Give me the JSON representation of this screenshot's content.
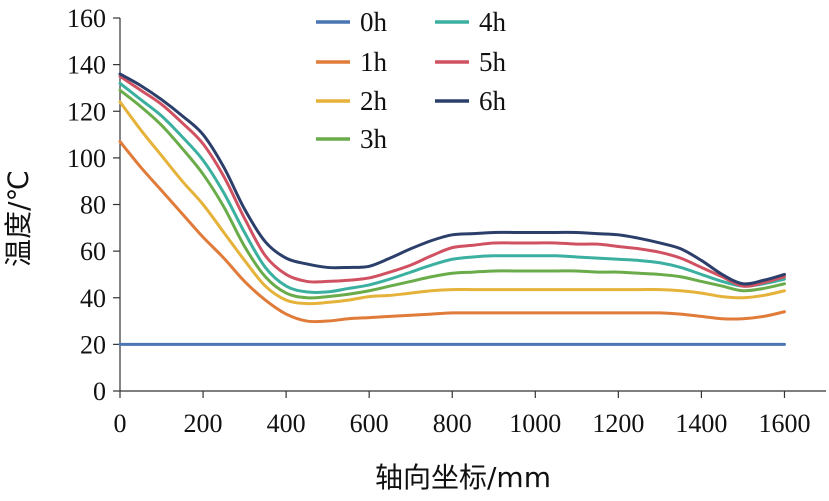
{
  "chart_data": {
    "type": "line",
    "title": "",
    "xlabel": "轴向坐标/mm",
    "ylabel": "温度/℃",
    "xlim": [
      0,
      1700
    ],
    "ylim": [
      0,
      160
    ],
    "x_ticks": [
      "0",
      "200",
      "400",
      "600",
      "800",
      "1000",
      "1200",
      "1400",
      "1600"
    ],
    "y_ticks": [
      "0",
      "20",
      "40",
      "60",
      "80",
      "100",
      "120",
      "140",
      "160"
    ],
    "grid": false,
    "legend_position": "top-center",
    "x": [
      0,
      50,
      100,
      150,
      200,
      250,
      300,
      350,
      400,
      450,
      500,
      550,
      600,
      650,
      700,
      750,
      800,
      850,
      900,
      950,
      1000,
      1050,
      1100,
      1150,
      1200,
      1250,
      1300,
      1350,
      1400,
      1450,
      1500,
      1550,
      1600
    ],
    "series": [
      {
        "name": "0h",
        "color": "#4a77b4",
        "values": [
          20,
          20,
          20,
          20,
          20,
          20,
          20,
          20,
          20,
          20,
          20,
          20,
          20,
          20,
          20,
          20,
          20,
          20,
          20,
          20,
          20,
          20,
          20,
          20,
          20,
          20,
          20,
          20,
          20,
          20,
          20,
          20,
          20
        ]
      },
      {
        "name": "1h",
        "color": "#e07b39",
        "values": [
          107,
          96,
          86,
          76,
          66,
          57,
          47,
          39,
          33,
          30,
          30,
          31,
          31.5,
          32,
          32.5,
          33,
          33.5,
          33.5,
          33.5,
          33.5,
          33.5,
          33.5,
          33.5,
          33.5,
          33.5,
          33.5,
          33.5,
          33,
          32,
          31,
          31,
          32,
          34
        ]
      },
      {
        "name": "2h",
        "color": "#e5b23a",
        "values": [
          124,
          112,
          101,
          90,
          80,
          68,
          56,
          45,
          39,
          37.5,
          38,
          39,
          40.5,
          41,
          42,
          43,
          43.5,
          43.5,
          43.5,
          43.5,
          43.5,
          43.5,
          43.5,
          43.5,
          43.5,
          43.5,
          43.5,
          43,
          42,
          40.5,
          40,
          41,
          43
        ]
      },
      {
        "name": "3h",
        "color": "#6aab4a",
        "values": [
          129,
          122,
          114,
          104,
          93,
          79,
          62,
          49,
          42,
          40,
          40.5,
          41.5,
          43,
          45,
          47,
          49,
          50.5,
          51,
          51.5,
          51.5,
          51.5,
          51.5,
          51.5,
          51,
          51,
          50.5,
          50,
          49,
          47,
          45,
          43,
          44,
          46
        ]
      },
      {
        "name": "4h",
        "color": "#3bb0a0",
        "values": [
          132,
          125,
          118,
          109,
          99,
          85,
          68,
          53,
          45,
          42.5,
          42.5,
          44,
          45.5,
          48,
          51,
          54,
          56.5,
          57.5,
          58,
          58,
          58,
          58,
          57.5,
          57,
          56.5,
          56,
          55,
          53,
          50,
          47,
          45,
          46,
          48
        ]
      },
      {
        "name": "5h",
        "color": "#d05262",
        "values": [
          135,
          129,
          123,
          115,
          106,
          92,
          74,
          58,
          50,
          47,
          47,
          47.5,
          48.5,
          51,
          54,
          58,
          61.5,
          62.5,
          63.5,
          63.5,
          63.5,
          63.5,
          63,
          63,
          62,
          61,
          59.5,
          57,
          53,
          49,
          45,
          46.5,
          49
        ]
      },
      {
        "name": "6h",
        "color": "#2c3f6b",
        "values": [
          136,
          131,
          125,
          118,
          110,
          96,
          78,
          64,
          57,
          54.5,
          53,
          53,
          53.5,
          57,
          61,
          64.5,
          67,
          67.5,
          68,
          68,
          68,
          68,
          68,
          67.5,
          67,
          65.5,
          63.5,
          61,
          56,
          50,
          46,
          47.5,
          50
        ]
      }
    ]
  }
}
